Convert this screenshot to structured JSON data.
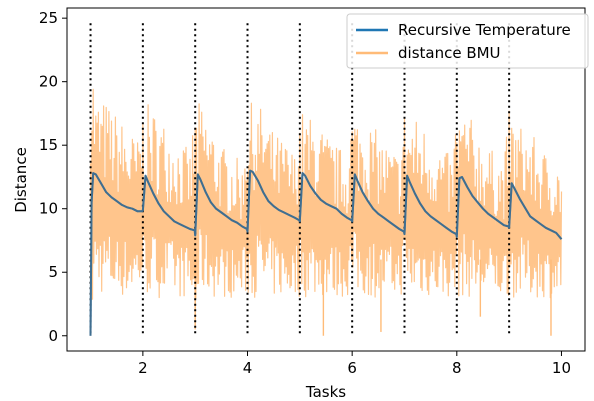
{
  "chart_data": {
    "type": "line",
    "title": "",
    "xlabel": "Tasks",
    "ylabel": "Distance",
    "xlim": [
      0.55,
      10.45
    ],
    "ylim": [
      -1.2,
      25.8
    ],
    "xticks": [
      2,
      4,
      6,
      8,
      10
    ],
    "yticks": [
      0,
      5,
      10,
      15,
      20,
      25
    ],
    "grid": false,
    "legend_position": "top-right",
    "task_boundaries": [
      1,
      2,
      3,
      4,
      5,
      6,
      7,
      8,
      9
    ],
    "colors": {
      "recursive_temperature": "#1f77b4",
      "distance_bmu": "#ffbb78",
      "boundary": "#000000"
    },
    "series": [
      {
        "name": "Recursive Temperature",
        "x": [
          1.0,
          1.02,
          1.05,
          1.1,
          1.2,
          1.3,
          1.4,
          1.5,
          1.6,
          1.7,
          1.8,
          1.9,
          1.99,
          2.0,
          2.05,
          2.1,
          2.2,
          2.3,
          2.4,
          2.5,
          2.6,
          2.7,
          2.8,
          2.9,
          2.99,
          3.0,
          3.05,
          3.1,
          3.2,
          3.3,
          3.4,
          3.5,
          3.6,
          3.7,
          3.8,
          3.9,
          3.99,
          4.0,
          4.05,
          4.1,
          4.2,
          4.3,
          4.4,
          4.5,
          4.6,
          4.7,
          4.8,
          4.9,
          4.99,
          5.0,
          5.05,
          5.1,
          5.2,
          5.3,
          5.4,
          5.5,
          5.6,
          5.7,
          5.8,
          5.9,
          5.99,
          6.0,
          6.05,
          6.1,
          6.2,
          6.3,
          6.4,
          6.5,
          6.6,
          6.7,
          6.8,
          6.9,
          6.99,
          7.0,
          7.05,
          7.1,
          7.2,
          7.3,
          7.4,
          7.5,
          7.6,
          7.7,
          7.8,
          7.9,
          7.99,
          8.0,
          8.05,
          8.1,
          8.2,
          8.3,
          8.4,
          8.5,
          8.6,
          8.7,
          8.8,
          8.9,
          8.99,
          9.0,
          9.05,
          9.1,
          9.2,
          9.3,
          9.4,
          9.5,
          9.6,
          9.7,
          9.8,
          9.9,
          10.0
        ],
        "values": [
          0.0,
          10.5,
          12.8,
          12.7,
          12.0,
          11.3,
          10.9,
          10.6,
          10.3,
          10.1,
          10.0,
          9.8,
          9.8,
          9.9,
          12.6,
          12.1,
          11.2,
          10.4,
          9.8,
          9.4,
          9.0,
          8.8,
          8.6,
          8.4,
          8.3,
          7.9,
          12.7,
          12.3,
          11.3,
          10.5,
          10.0,
          9.7,
          9.4,
          9.1,
          8.9,
          8.6,
          8.4,
          8.2,
          13.0,
          12.9,
          12.2,
          11.3,
          10.6,
          10.2,
          9.9,
          9.7,
          9.5,
          9.3,
          9.1,
          9.0,
          12.8,
          12.6,
          11.8,
          11.2,
          10.7,
          10.4,
          10.2,
          10.0,
          9.6,
          9.3,
          9.1,
          9.0,
          12.7,
          12.2,
          11.3,
          10.6,
          10.0,
          9.6,
          9.3,
          9.0,
          8.7,
          8.4,
          8.2,
          8.0,
          12.6,
          12.1,
          11.2,
          10.4,
          9.8,
          9.4,
          9.1,
          8.8,
          8.5,
          8.2,
          8.0,
          7.8,
          12.4,
          12.5,
          11.7,
          11.0,
          10.5,
          10.0,
          9.6,
          9.3,
          9.0,
          8.7,
          8.6,
          8.5,
          12.0,
          11.6,
          10.8,
          10.1,
          9.4,
          9.1,
          8.8,
          8.5,
          8.3,
          8.1,
          7.6
        ]
      },
      {
        "name": "distance BMU",
        "envelope": {
          "x": [
            1.0,
            1.1,
            1.3,
            1.5,
            1.7,
            1.9,
            2.0,
            2.1,
            2.3,
            2.5,
            2.7,
            2.9,
            3.0,
            3.1,
            3.3,
            3.5,
            3.7,
            3.9,
            4.0,
            4.1,
            4.3,
            4.5,
            4.7,
            4.9,
            5.0,
            5.1,
            5.3,
            5.5,
            5.7,
            5.9,
            6.0,
            6.1,
            6.3,
            6.5,
            6.7,
            6.9,
            7.0,
            7.1,
            7.3,
            7.5,
            7.7,
            7.9,
            8.0,
            8.1,
            8.3,
            8.5,
            8.7,
            8.9,
            9.0,
            9.1,
            9.3,
            9.5,
            9.7,
            9.9,
            10.0
          ],
          "upper": [
            24.7,
            19.0,
            18.5,
            17.5,
            16.5,
            15.5,
            18.0,
            18.2,
            17.5,
            16.5,
            15.5,
            14.5,
            18.5,
            18.3,
            17.0,
            15.0,
            14.5,
            13.5,
            18.5,
            18.3,
            18.0,
            16.0,
            15.5,
            14.5,
            18.0,
            17.5,
            17.0,
            16.0,
            15.0,
            14.5,
            18.0,
            17.5,
            17.0,
            16.0,
            15.0,
            14.5,
            18.0,
            17.5,
            17.0,
            16.0,
            15.0,
            14.0,
            18.0,
            17.8,
            17.0,
            15.5,
            14.5,
            14.0,
            17.8,
            17.0,
            16.5,
            15.5,
            14.5,
            14.0,
            13.5
          ],
          "lower": [
            0.0,
            3.5,
            3.0,
            3.0,
            3.0,
            3.5,
            3.5,
            3.0,
            3.0,
            3.0,
            3.0,
            3.0,
            0.5,
            3.5,
            3.0,
            3.0,
            3.0,
            3.0,
            3.0,
            3.0,
            3.0,
            3.0,
            3.0,
            3.0,
            3.0,
            3.0,
            3.0,
            3.0,
            3.0,
            3.0,
            3.5,
            3.0,
            3.0,
            3.0,
            3.0,
            3.0,
            3.5,
            3.0,
            3.0,
            3.0,
            3.0,
            3.0,
            3.0,
            3.0,
            3.0,
            3.0,
            3.0,
            3.0,
            3.0,
            3.0,
            3.0,
            3.0,
            3.0,
            3.0,
            3.0
          ]
        },
        "dropouts": [
          [
            3.0,
            0.5
          ],
          [
            5.45,
            0.0
          ],
          [
            6.55,
            0.3
          ],
          [
            9.8,
            0.0
          ],
          [
            8.45,
            1.5
          ]
        ]
      }
    ]
  }
}
